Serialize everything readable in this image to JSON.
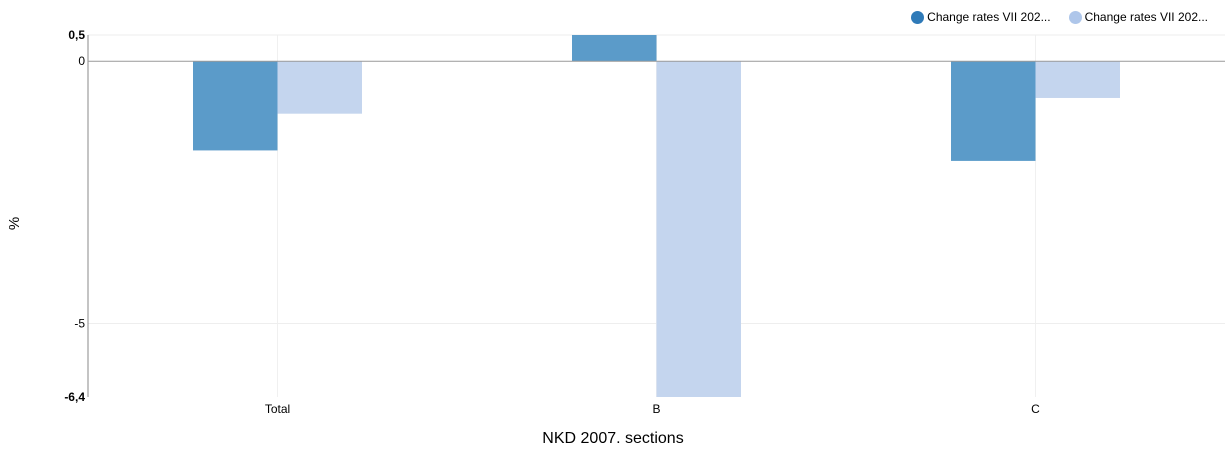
{
  "chart_data": {
    "type": "bar",
    "title": "",
    "xlabel": "NKD 2007. sections",
    "ylabel": "%",
    "categories": [
      "Total",
      "B",
      "C"
    ],
    "series": [
      {
        "name": "Change rates VII 202...",
        "values": [
          -1.7,
          0.5,
          -1.9
        ],
        "color": "#5b9bc9",
        "legend_color": "#2f7ab8"
      },
      {
        "name": "Change rates VII 202...",
        "values": [
          -1.0,
          -6.4,
          -0.7
        ],
        "color": "#c4d5ee",
        "legend_color": "#aec6ea"
      }
    ],
    "ylim": [
      -6.4,
      0.5
    ],
    "yticks": [
      {
        "value": 0.5,
        "label": "0,5",
        "bold": true
      },
      {
        "value": 0,
        "label": "0",
        "bold": false
      },
      {
        "value": -5,
        "label": "-5",
        "bold": false
      },
      {
        "value": -6.4,
        "label": "-6,4",
        "bold": true
      }
    ],
    "grid": true,
    "legend": "top-right"
  }
}
